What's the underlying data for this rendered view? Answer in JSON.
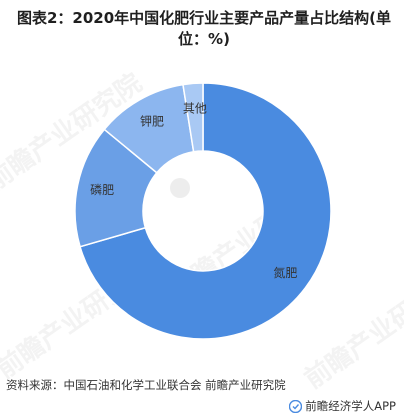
{
  "title": "图表2：2020年中国化肥行业主要产品产量占比结构(单位：%)",
  "source": "资料来源：中国石油和化学工业联合会 前瞻产业研究院",
  "brand": "前瞻经济学人APP",
  "watermark": "前瞻产业研究院",
  "colors": {
    "slices": [
      "#4a8be0",
      "#6a9fe6",
      "#8cb6ef",
      "#a9c9f4"
    ],
    "border": "#ffffff",
    "label": "#333333"
  },
  "chart_data": {
    "type": "pie",
    "variant": "donut",
    "title": "图表2：2020年中国化肥行业主要产品产量占比结构(单位：%)",
    "categories": [
      "氮肥",
      "磷肥",
      "钾肥",
      "其他"
    ],
    "values": [
      70.5,
      15.5,
      11.5,
      2.5
    ],
    "unit": "%",
    "legend": "none",
    "start": "top",
    "direction": "clockwise"
  }
}
